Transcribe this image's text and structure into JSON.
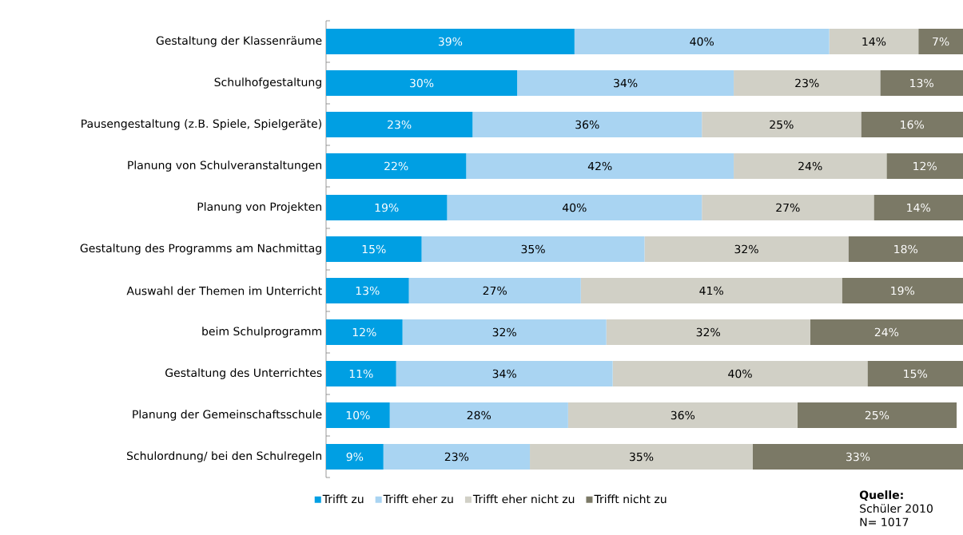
{
  "chart_data": {
    "type": "bar",
    "orientation": "horizontal",
    "stacked": true,
    "legend": "bottom",
    "xlim": [
      0,
      100
    ],
    "tick_labels": "y",
    "categories": [
      "Gestaltung der Klassenräume",
      "Schulhofgestaltung",
      "Pausengestaltung (z.B. Spiele, Spielgeräte)",
      "Planung von Schulveranstaltungen",
      "Planung von Projekten",
      "Gestaltung des Programms am Nachmittag",
      "Auswahl der Themen im Unterricht",
      "beim Schulprogramm",
      "Gestaltung des Unterrichtes",
      "Planung der Gemeinschaftsschule",
      "Schulordnung/ bei den Schulregeln"
    ],
    "series": [
      {
        "name": "Trifft zu",
        "color": "#009fe3",
        "values": [
          39,
          30,
          23,
          22,
          19,
          15,
          13,
          12,
          11,
          10,
          9
        ],
        "value_labels": [
          "39%",
          "30%",
          "23%",
          "22%",
          "19%",
          "15%",
          "13%",
          "12%",
          "11%",
          "10%",
          "9%"
        ]
      },
      {
        "name": "Trifft eher zu",
        "color": "#a9d4f2",
        "values": [
          40,
          34,
          36,
          42,
          40,
          35,
          27,
          32,
          34,
          28,
          23
        ],
        "value_labels": [
          "40%",
          "34%",
          "36%",
          "42%",
          "40%",
          "35%",
          "27%",
          "32%",
          "34%",
          "28%",
          "23%"
        ]
      },
      {
        "name": "Trifft eher nicht zu",
        "color": "#d1d0c6",
        "values": [
          14,
          23,
          25,
          24,
          27,
          32,
          41,
          32,
          40,
          36,
          35
        ],
        "value_labels": [
          "14%",
          "23%",
          "25%",
          "24%",
          "27%",
          "32%",
          "41%",
          "32%",
          "40%",
          "36%",
          "35%"
        ]
      },
      {
        "name": "Trifft nicht zu",
        "color": "#7b7966",
        "values": [
          7,
          13,
          16,
          12,
          14,
          18,
          19,
          24,
          15,
          25,
          33
        ],
        "value_labels": [
          "7%",
          "13%",
          "16%",
          "12%",
          "14%",
          "18%",
          "19%",
          "24%",
          "15%",
          "25%",
          "33%"
        ]
      }
    ],
    "annotations": [
      "**Quelle:**",
      "Schüler 2010",
      "N= 1017"
    ]
  }
}
